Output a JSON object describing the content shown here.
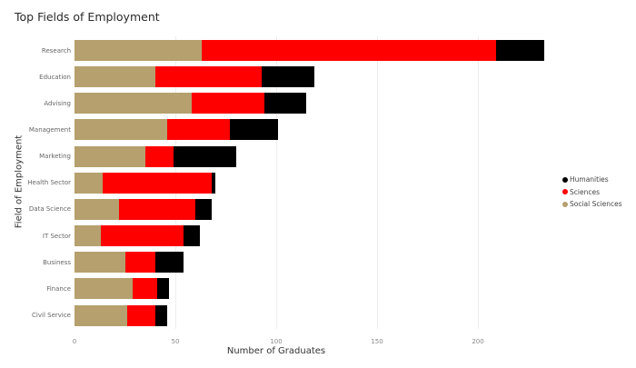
{
  "chart_data": {
    "type": "bar",
    "orientation": "horizontal",
    "stacked": true,
    "title": "Top Fields of Employment",
    "xlabel": "Number of Graduates",
    "ylabel": "Field of Employment",
    "xlim": [
      0,
      243
    ],
    "xticks": [
      0,
      50,
      100,
      150,
      200
    ],
    "grid": true,
    "legend_position": "right",
    "categories": [
      "Research",
      "Education",
      "Advising",
      "Management",
      "Marketing",
      "Health Sector",
      "Data Science",
      "IT Sector",
      "Business",
      "Finance",
      "Civil Service"
    ],
    "series": [
      {
        "name": "Social Sciences",
        "color": "#B5A06E",
        "values": [
          63,
          40,
          58,
          46,
          35,
          14,
          22,
          13,
          25,
          29,
          26
        ]
      },
      {
        "name": "Sciences",
        "color": "#FF0000",
        "values": [
          146,
          53,
          36,
          31,
          14,
          54,
          38,
          41,
          15,
          12,
          14
        ]
      },
      {
        "name": "Humanities",
        "color": "#000000",
        "values": [
          24,
          26,
          21,
          24,
          31,
          2,
          8,
          8,
          14,
          6,
          6
        ]
      }
    ],
    "legend": [
      "Humanities",
      "Sciences",
      "Social Sciences"
    ]
  }
}
